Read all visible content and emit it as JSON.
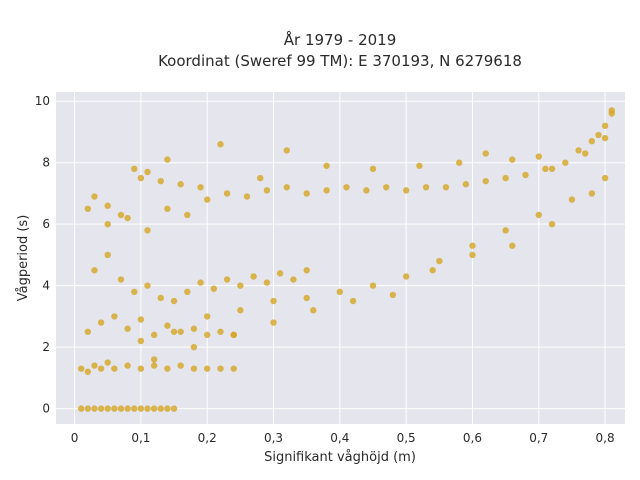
{
  "chart_data": {
    "type": "scatter",
    "title_line1": "År 1979 - 2019",
    "title_line2": "Koordinat (Sweref 99 TM): E 370193, N 6279618",
    "xlabel": "Signifikant våghöjd (m)",
    "ylabel": "Vågperiod (s)",
    "xlim": [
      -0.028,
      0.83
    ],
    "ylim": [
      -0.5,
      10.3
    ],
    "xticks": [
      0,
      0.1,
      0.2,
      0.3,
      0.4,
      0.5,
      0.6,
      0.7,
      0.8
    ],
    "xtick_labels": [
      "0",
      "0,1",
      "0,2",
      "0,3",
      "0,4",
      "0,5",
      "0,6",
      "0,7",
      "0,8"
    ],
    "yticks": [
      0,
      2,
      4,
      6,
      8,
      10
    ],
    "ytick_labels": [
      "0",
      "2",
      "4",
      "6",
      "8",
      "10"
    ],
    "grid": true,
    "marker_color": "#d4a520",
    "plot_background": "#e5e5ee",
    "series": [
      {
        "x": [
          0.01,
          0.02,
          0.03,
          0.04,
          0.05,
          0.06,
          0.07,
          0.08,
          0.09,
          0.1,
          0.11,
          0.12,
          0.13,
          0.14,
          0.15,
          0.01,
          0.02,
          0.03,
          0.04,
          0.05,
          0.06,
          0.08,
          0.1,
          0.12,
          0.14,
          0.16,
          0.18,
          0.2,
          0.22,
          0.24,
          0.02,
          0.04,
          0.06,
          0.08,
          0.1,
          0.12,
          0.14,
          0.16,
          0.18,
          0.2,
          0.22,
          0.24,
          0.03,
          0.05,
          0.07,
          0.09,
          0.11,
          0.13,
          0.15,
          0.17,
          0.19,
          0.21,
          0.23,
          0.25,
          0.27,
          0.29,
          0.31,
          0.33,
          0.35,
          0.05,
          0.08,
          0.11,
          0.14,
          0.17,
          0.2,
          0.23,
          0.26,
          0.29,
          0.32,
          0.35,
          0.38,
          0.41,
          0.44,
          0.47,
          0.5,
          0.53,
          0.56,
          0.59,
          0.62,
          0.65,
          0.68,
          0.71,
          0.74,
          0.77,
          0.8,
          0.1,
          0.15,
          0.2,
          0.25,
          0.3,
          0.35,
          0.4,
          0.45,
          0.5,
          0.55,
          0.6,
          0.65,
          0.7,
          0.75,
          0.8,
          0.12,
          0.18,
          0.24,
          0.3,
          0.36,
          0.42,
          0.48,
          0.54,
          0.6,
          0.66,
          0.72,
          0.78,
          0.02,
          0.03,
          0.05,
          0.07,
          0.09,
          0.1,
          0.11,
          0.13,
          0.14,
          0.16,
          0.19,
          0.22,
          0.28,
          0.32,
          0.38,
          0.45,
          0.52,
          0.58,
          0.62,
          0.66,
          0.7,
          0.72,
          0.76,
          0.78,
          0.79,
          0.8,
          0.81,
          0.81
        ],
        "y": [
          0,
          0,
          0,
          0,
          0,
          0,
          0,
          0,
          0,
          0,
          0,
          0,
          0,
          0,
          0,
          1.3,
          1.2,
          1.4,
          1.3,
          1.5,
          1.3,
          1.4,
          1.3,
          1.4,
          1.3,
          1.4,
          1.3,
          1.3,
          1.3,
          1.3,
          2.5,
          2.8,
          3.0,
          2.6,
          2.9,
          2.4,
          2.7,
          2.5,
          2.6,
          2.4,
          2.5,
          2.4,
          4.5,
          5.0,
          4.2,
          3.8,
          4.0,
          3.6,
          3.5,
          3.8,
          4.1,
          3.9,
          4.2,
          4.0,
          4.3,
          4.1,
          4.4,
          4.2,
          4.5,
          6.0,
          6.2,
          5.8,
          6.5,
          6.3,
          6.8,
          7.0,
          6.9,
          7.1,
          7.2,
          7.0,
          7.1,
          7.2,
          7.1,
          7.2,
          7.1,
          7.2,
          7.2,
          7.3,
          7.4,
          7.5,
          7.6,
          7.8,
          8.0,
          8.3,
          8.8,
          2.2,
          2.5,
          3.0,
          3.2,
          3.5,
          3.6,
          3.8,
          4.0,
          4.3,
          4.8,
          5.3,
          5.8,
          6.3,
          6.8,
          7.5,
          1.6,
          2.0,
          2.4,
          2.8,
          3.2,
          3.5,
          3.7,
          4.5,
          5.0,
          5.3,
          6.0,
          7.0,
          6.5,
          6.9,
          6.6,
          6.3,
          7.8,
          7.5,
          7.7,
          7.4,
          8.1,
          7.3,
          7.2,
          8.6,
          7.5,
          8.4,
          7.9,
          7.8,
          7.9,
          8.0,
          8.3,
          8.1,
          8.2,
          7.8,
          8.4,
          8.7,
          8.9,
          9.2,
          9.6,
          9.7
        ]
      }
    ]
  }
}
